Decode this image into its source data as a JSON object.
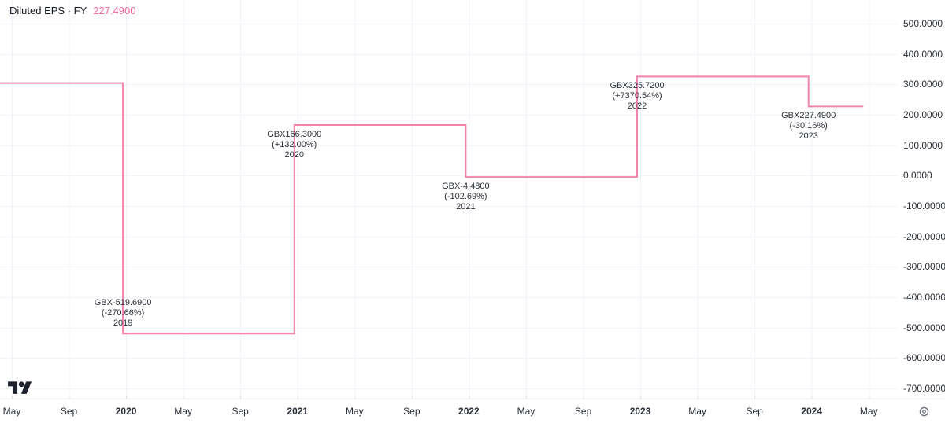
{
  "legend": {
    "title": "Diluted EPS · FY",
    "value": "227.4900"
  },
  "colors": {
    "line": "#f584ad",
    "legend_value": "#f3679f",
    "text": "#2a2e39",
    "grid": "#f0f3fa",
    "axis_tick_mark": "#dcdfe6",
    "logo": "#1e222d",
    "gear_icon": "#6f7380"
  },
  "chart_data": {
    "type": "line",
    "subtype": "step-line",
    "title": "Diluted EPS · FY",
    "unit": "GBX",
    "current_value": 227.49,
    "initial_level": 304.5,
    "points": [
      {
        "year": "2019",
        "value": -519.69,
        "value_label": "GBX-519.6900",
        "change_label": "(-270.66%)",
        "label_side": "above"
      },
      {
        "year": "2020",
        "value": 166.3,
        "value_label": "GBX166.3000",
        "change_label": "(+132.00%)",
        "label_side": "below"
      },
      {
        "year": "2021",
        "value": -4.48,
        "value_label": "GBX-4.4800",
        "change_label": "(-102.69%)",
        "label_side": "below"
      },
      {
        "year": "2022",
        "value": 325.72,
        "value_label": "GBX325.7200",
        "change_label": "(+7370.54%)",
        "label_side": "below"
      },
      {
        "year": "2023",
        "value": 227.49,
        "value_label": "GBX227.4900",
        "change_label": "(-30.16%)",
        "label_side": "below"
      }
    ],
    "y_axis": {
      "min": -700,
      "max": 500,
      "grid": true,
      "ticks": [
        {
          "label": "500.0000",
          "value": 500
        },
        {
          "label": "400.0000",
          "value": 400
        },
        {
          "label": "300.0000",
          "value": 300
        },
        {
          "label": "200.0000",
          "value": 200
        },
        {
          "label": "100.0000",
          "value": 100
        },
        {
          "label": "0.0000",
          "value": 0
        },
        {
          "label": "-100.0000",
          "value": -100
        },
        {
          "label": "-200.0000",
          "value": -200
        },
        {
          "label": "-300.0000",
          "value": -300
        },
        {
          "label": "-400.0000",
          "value": -400
        },
        {
          "label": "-500.0000",
          "value": -500
        },
        {
          "label": "-600.0000",
          "value": -600
        },
        {
          "label": "-700.0000",
          "value": -700
        }
      ]
    },
    "x_axis": {
      "grid": true,
      "ticks": [
        {
          "label": "May",
          "bold": false
        },
        {
          "label": "Sep",
          "bold": false
        },
        {
          "label": "2020",
          "bold": true
        },
        {
          "label": "May",
          "bold": false
        },
        {
          "label": "Sep",
          "bold": false
        },
        {
          "label": "2021",
          "bold": true
        },
        {
          "label": "May",
          "bold": false
        },
        {
          "label": "Sep",
          "bold": false
        },
        {
          "label": "2022",
          "bold": true
        },
        {
          "label": "May",
          "bold": false
        },
        {
          "label": "Sep",
          "bold": false
        },
        {
          "label": "2023",
          "bold": true
        },
        {
          "label": "May",
          "bold": false
        },
        {
          "label": "Sep",
          "bold": false
        },
        {
          "label": "2024",
          "bold": true
        },
        {
          "label": "May",
          "bold": false
        }
      ]
    },
    "legend_position": "top-left"
  }
}
